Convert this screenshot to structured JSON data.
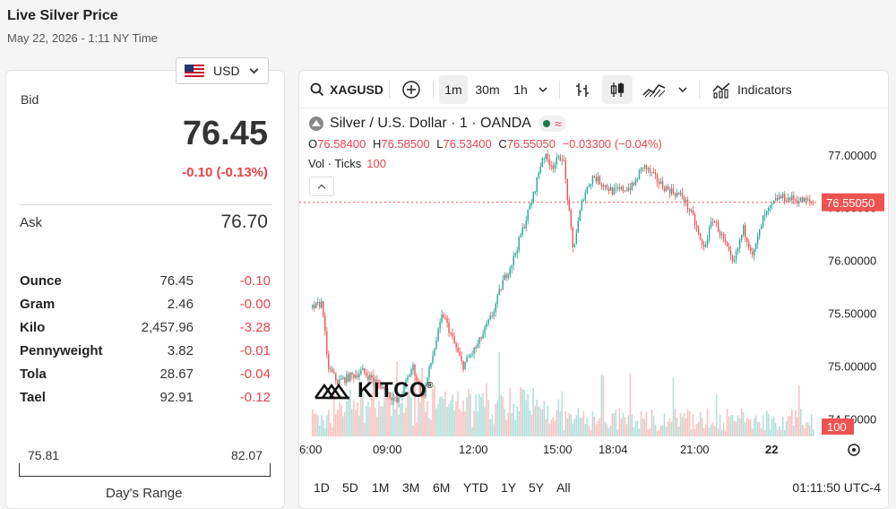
{
  "header": {
    "title": "Live Silver Price",
    "subtitle": "May 22, 2026 - 1:11 NY Time"
  },
  "currency": {
    "selected": "USD",
    "icon": "us-flag-icon"
  },
  "quote": {
    "bid_label": "Bid",
    "bid_value": "76.45",
    "bid_change": "-0.10 (-0.13%)",
    "ask_label": "Ask",
    "ask_value": "76.70"
  },
  "units": [
    {
      "name": "Ounce",
      "price": "76.45",
      "change": "-0.10"
    },
    {
      "name": "Gram",
      "price": "2.46",
      "change": "-0.00"
    },
    {
      "name": "Kilo",
      "price": "2,457.96",
      "change": "-3.28"
    },
    {
      "name": "Pennyweight",
      "price": "3.82",
      "change": "-0.01"
    },
    {
      "name": "Tola",
      "price": "28.67",
      "change": "-0.04"
    },
    {
      "name": "Tael",
      "price": "92.91",
      "change": "-0.12"
    }
  ],
  "day_range": {
    "low": "75.81",
    "high": "82.07",
    "label": "Day's Range"
  },
  "toolbar": {
    "symbol": "XAGUSD",
    "intervals": [
      "1m",
      "30m",
      "1h"
    ],
    "active_interval": "1m",
    "indicators_label": "Indicators"
  },
  "legend": {
    "title": "Silver / U.S. Dollar · 1 · OANDA",
    "o_label": "O",
    "o_value": "76.58400",
    "h_label": "H",
    "h_value": "76.58500",
    "l_label": "L",
    "l_value": "76.53400",
    "c_label": "C",
    "c_value": "76.55050",
    "change": "−0.03300 (−0.04%)",
    "vol_label": "Vol · Ticks",
    "vol_value": "100"
  },
  "ranges": [
    "1D",
    "5D",
    "1M",
    "3M",
    "6M",
    "YTD",
    "1Y",
    "5Y",
    "All"
  ],
  "clock": "01:11:50 UTC-4",
  "watermark": "KITCO",
  "colors": {
    "up": "#26a69a",
    "down": "#ef5350",
    "accent_red": "#e8434b"
  },
  "chart_data": {
    "type": "candlestick",
    "y_ticks": [
      "77.00000",
      "76.50000",
      "76.00000",
      "75.50000",
      "75.00000",
      "74.50000"
    ],
    "x_ticks": [
      "6:00",
      "09:00",
      "12:00",
      "15:00",
      "18:04",
      "21:00",
      "22"
    ],
    "last_price_label": "76.55050",
    "last_price": 76.5505,
    "volume_label": "100",
    "ylim": [
      74.3,
      77.1
    ],
    "path": [
      [
        0,
        75.55
      ],
      [
        0.02,
        75.6
      ],
      [
        0.03,
        75.0
      ],
      [
        0.05,
        74.85
      ],
      [
        0.1,
        74.95
      ],
      [
        0.14,
        74.8
      ],
      [
        0.17,
        74.65
      ],
      [
        0.2,
        75.0
      ],
      [
        0.22,
        74.7
      ],
      [
        0.24,
        75.1
      ],
      [
        0.26,
        75.5
      ],
      [
        0.3,
        75.0
      ],
      [
        0.33,
        75.2
      ],
      [
        0.36,
        75.5
      ],
      [
        0.38,
        75.8
      ],
      [
        0.4,
        76.0
      ],
      [
        0.42,
        76.3
      ],
      [
        0.44,
        76.6
      ],
      [
        0.46,
        77.0
      ],
      [
        0.48,
        76.9
      ],
      [
        0.5,
        77.0
      ],
      [
        0.52,
        76.1
      ],
      [
        0.54,
        76.6
      ],
      [
        0.56,
        76.8
      ],
      [
        0.6,
        76.65
      ],
      [
        0.64,
        76.7
      ],
      [
        0.66,
        76.9
      ],
      [
        0.7,
        76.7
      ],
      [
        0.74,
        76.6
      ],
      [
        0.76,
        76.4
      ],
      [
        0.78,
        76.1
      ],
      [
        0.8,
        76.4
      ],
      [
        0.82,
        76.2
      ],
      [
        0.84,
        75.95
      ],
      [
        0.86,
        76.3
      ],
      [
        0.88,
        76.05
      ],
      [
        0.9,
        76.4
      ],
      [
        0.93,
        76.6
      ],
      [
        0.96,
        76.58
      ],
      [
        1.0,
        76.55
      ]
    ]
  }
}
